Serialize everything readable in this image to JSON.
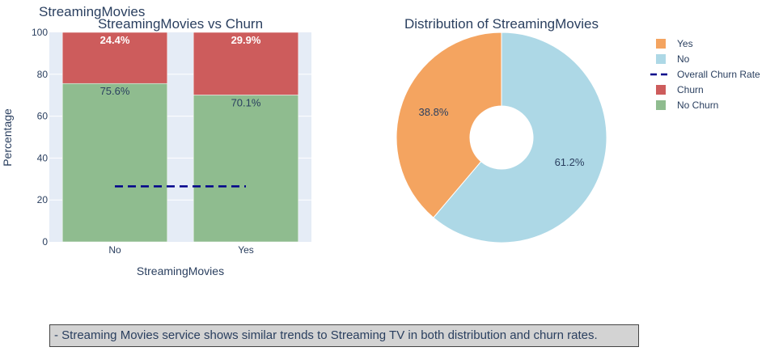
{
  "figure_title": "StreamingMovies",
  "note": "- Streaming Movies service shows similar trends to Streaming TV in both distribution and churn rates.",
  "colors": {
    "churn": "#cd5c5c",
    "no_churn": "#8fbc8f",
    "plot_bg": "#e5ecf6",
    "overall_line": "#00008b",
    "pie_yes": "#f4a460",
    "pie_no": "#add8e6",
    "text": "#2a3f5f"
  },
  "chart_data": [
    {
      "type": "bar",
      "stacked": true,
      "title": "StreamingMovies vs Churn",
      "xlabel": "StreamingMovies",
      "ylabel": "Percentage",
      "categories": [
        "No",
        "Yes"
      ],
      "ylim": [
        0,
        100
      ],
      "yticks": [
        0,
        20,
        40,
        60,
        80,
        100
      ],
      "series": [
        {
          "name": "No Churn",
          "values": [
            75.6,
            70.1
          ],
          "labels": [
            "75.6%",
            "70.1%"
          ]
        },
        {
          "name": "Churn",
          "values": [
            24.4,
            29.9
          ],
          "labels": [
            "24.4%",
            "29.9%"
          ]
        }
      ],
      "reference_line": {
        "name": "Overall Churn Rate",
        "value": 26.5,
        "style": "dashed"
      },
      "grid": true
    },
    {
      "type": "pie",
      "hole": true,
      "title": "Distribution of StreamingMovies",
      "slices": [
        {
          "label": "Yes",
          "value": 38.8,
          "text": "38.8%"
        },
        {
          "label": "No",
          "value": 61.2,
          "text": "61.2%"
        }
      ]
    }
  ],
  "legend": {
    "position": "top-right",
    "items": [
      "Yes",
      "No",
      "Overall Churn Rate",
      "Churn",
      "No Churn"
    ]
  }
}
